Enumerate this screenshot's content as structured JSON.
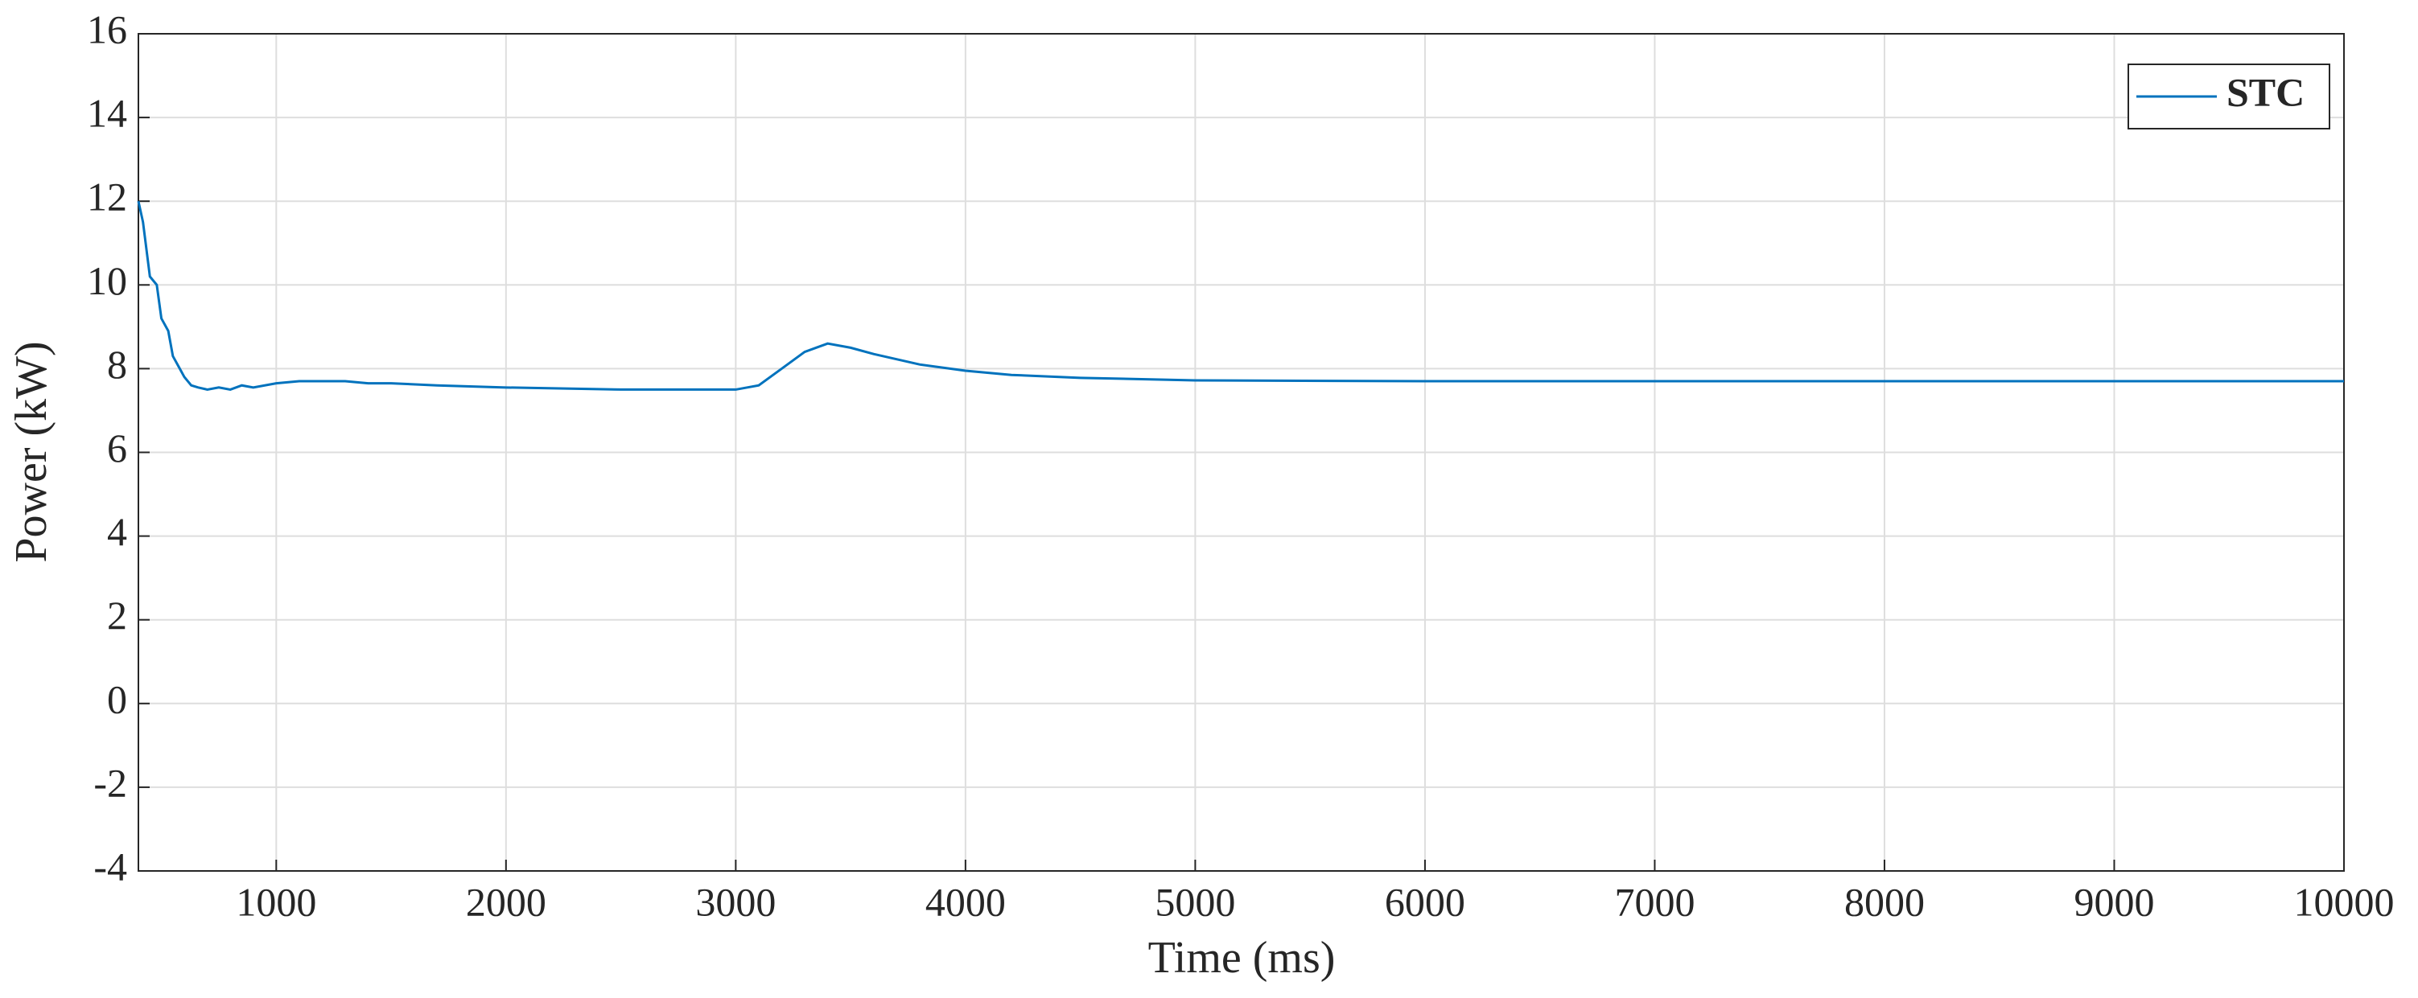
{
  "chart_data": {
    "type": "line",
    "xlabel": "Time (ms)",
    "ylabel": "Power (kW)",
    "x": [
      400,
      420,
      450,
      480,
      500,
      530,
      550,
      580,
      600,
      630,
      660,
      700,
      750,
      800,
      850,
      900,
      1000,
      1100,
      1200,
      1300,
      1400,
      1500,
      1700,
      2000,
      2500,
      3000,
      3100,
      3200,
      3300,
      3400,
      3500,
      3600,
      3800,
      4000,
      4200,
      4500,
      5000,
      6000,
      7000,
      8000,
      9000,
      10000
    ],
    "series": [
      {
        "name": "STC",
        "color": "#0072bd",
        "values": [
          12,
          11.5,
          10.2,
          10.0,
          9.2,
          8.9,
          8.3,
          8.0,
          7.8,
          7.6,
          7.55,
          7.5,
          7.55,
          7.5,
          7.6,
          7.55,
          7.65,
          7.7,
          7.7,
          7.7,
          7.65,
          7.65,
          7.6,
          7.55,
          7.5,
          7.5,
          7.6,
          8.0,
          8.4,
          8.6,
          8.5,
          8.35,
          8.1,
          7.95,
          7.85,
          7.78,
          7.72,
          7.7,
          7.7,
          7.7,
          7.7,
          7.7
        ]
      }
    ],
    "xlim": [
      400,
      10000
    ],
    "ylim": [
      -4,
      16
    ],
    "xticks": [
      1000,
      2000,
      3000,
      4000,
      5000,
      6000,
      7000,
      8000,
      9000,
      10000
    ],
    "yticks": [
      -4,
      -2,
      0,
      2,
      4,
      6,
      8,
      10,
      12,
      14,
      16
    ],
    "grid": true,
    "legend": "upper right"
  }
}
